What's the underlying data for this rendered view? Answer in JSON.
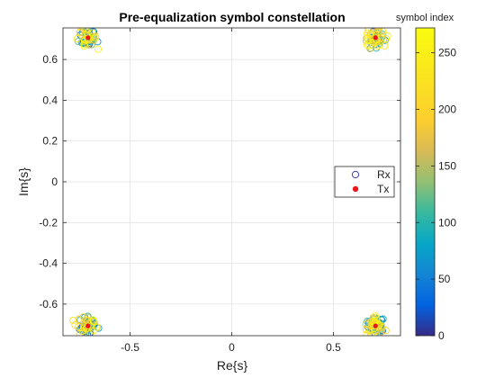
{
  "chart_data": {
    "type": "scatter",
    "title": "Pre-equalization symbol constellation",
    "xlabel": "Re{s}",
    "ylabel": "Im{s}",
    "xlim": [
      -0.83,
      0.83
    ],
    "ylim": [
      -0.755,
      0.755
    ],
    "xticks": [
      -0.5,
      0,
      0.5
    ],
    "xtick_labels": [
      "-0.5",
      "0",
      "0.5"
    ],
    "yticks": [
      -0.6,
      -0.4,
      -0.2,
      0,
      0.2,
      0.4,
      0.6
    ],
    "ytick_labels": [
      "-0.6",
      "-0.4",
      "-0.2",
      "0",
      "0.2",
      "0.4",
      "0.6"
    ],
    "grid": true,
    "legend": {
      "placement": "right",
      "entries": [
        {
          "label": "Rx",
          "marker": "open-circle",
          "color": "#3a3ab8"
        },
        {
          "label": "Tx",
          "marker": "filled-dot",
          "color": "#e8171b"
        }
      ]
    },
    "colorbar": {
      "label": "symbol index",
      "min": 0,
      "max": 272,
      "ticks": [
        0,
        50,
        100,
        150,
        200,
        250
      ],
      "tick_labels": [
        "0",
        "50",
        "100",
        "150",
        "200",
        "250"
      ],
      "colormap": "parula"
    },
    "series": [
      {
        "name": "Tx",
        "marker": "filled-dot",
        "color": "#e8171b",
        "points": [
          {
            "x": 0.707,
            "y": 0.707
          },
          {
            "x": -0.707,
            "y": 0.707
          },
          {
            "x": -0.707,
            "y": -0.707
          },
          {
            "x": 0.707,
            "y": -0.707
          }
        ]
      },
      {
        "name": "Rx",
        "marker": "open-circle",
        "color_by": "symbol index",
        "count": 272,
        "clusters": [
          {
            "center": [
              0.707,
              0.707
            ],
            "spread": 0.022
          },
          {
            "center": [
              -0.707,
              0.707
            ],
            "spread": 0.022
          },
          {
            "center": [
              -0.707,
              -0.707
            ],
            "spread": 0.022
          },
          {
            "center": [
              0.707,
              -0.707
            ],
            "spread": 0.022
          }
        ]
      }
    ]
  }
}
